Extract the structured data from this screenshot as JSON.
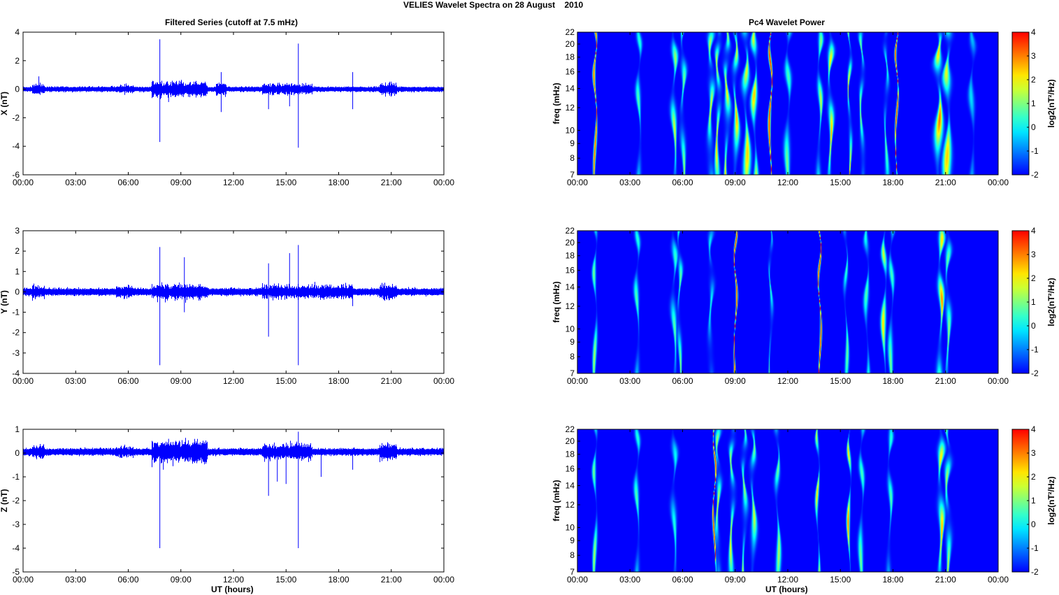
{
  "figure_title": "VELIES Wavelet Spectra on 28 August    2010",
  "left_title": "Filtered Series (cutoff at 7.5 mHz)",
  "right_title": "Pc4 Wavelet Power",
  "xlabel": "UT (hours)",
  "colors": {
    "series": "#0000ff",
    "background_power": "#00008f"
  },
  "chart_data": [
    {
      "type": "line",
      "name": "X",
      "ylabel": "X (nT)",
      "xlim": [
        0,
        24
      ],
      "ylim": [
        -6,
        4
      ],
      "yticks": [
        -6,
        -4,
        -2,
        0,
        2,
        4
      ],
      "xtick_labels": [
        "00:00",
        "03:00",
        "06:00",
        "09:00",
        "12:00",
        "15:00",
        "18:00",
        "21:00",
        "00:00"
      ],
      "offset": 0.0,
      "noise_level": 0.12,
      "active_intervals": [
        [
          0.5,
          1.2,
          0.25
        ],
        [
          5.3,
          6.3,
          0.2
        ],
        [
          7.3,
          10.5,
          0.35
        ],
        [
          11.0,
          11.6,
          0.3
        ],
        [
          13.6,
          16.5,
          0.25
        ],
        [
          20.3,
          21.3,
          0.3
        ]
      ],
      "spikes": [
        [
          7.8,
          3.5
        ],
        [
          7.8,
          -3.7
        ],
        [
          15.7,
          3.2
        ],
        [
          15.7,
          -4.1
        ],
        [
          11.3,
          1.2
        ],
        [
          11.3,
          -1.6
        ],
        [
          14.0,
          -1.4
        ],
        [
          18.8,
          -1.4
        ],
        [
          8.3,
          -0.9
        ],
        [
          15.2,
          -1.2
        ],
        [
          0.9,
          0.9
        ],
        [
          18.8,
          1.2
        ]
      ]
    },
    {
      "type": "line",
      "name": "Y",
      "ylabel": "Y (nT)",
      "xlim": [
        0,
        24
      ],
      "ylim": [
        -4,
        3
      ],
      "yticks": [
        -4,
        -3,
        -2,
        -1,
        0,
        1,
        2,
        3
      ],
      "xtick_labels": [
        "00:00",
        "03:00",
        "06:00",
        "09:00",
        "12:00",
        "15:00",
        "18:00",
        "21:00",
        "00:00"
      ],
      "offset": 0.0,
      "noise_level": 0.12,
      "active_intervals": [
        [
          0.5,
          1.2,
          0.2
        ],
        [
          5.3,
          6.3,
          0.2
        ],
        [
          7.3,
          10.5,
          0.25
        ],
        [
          13.6,
          18.8,
          0.22
        ],
        [
          20.3,
          21.3,
          0.25
        ]
      ],
      "spikes": [
        [
          7.8,
          2.2
        ],
        [
          7.8,
          -3.6
        ],
        [
          9.2,
          1.7
        ],
        [
          9.2,
          -1.0
        ],
        [
          14.0,
          1.4
        ],
        [
          14.0,
          -2.2
        ],
        [
          15.2,
          1.9
        ],
        [
          15.7,
          2.3
        ],
        [
          15.7,
          -3.6
        ],
        [
          18.8,
          -0.7
        ],
        [
          20.9,
          -0.4
        ]
      ]
    },
    {
      "type": "line",
      "name": "Z",
      "ylabel": "Z (nT)",
      "xlim": [
        0,
        24
      ],
      "ylim": [
        -5,
        1
      ],
      "yticks": [
        -5,
        -4,
        -3,
        -2,
        -1,
        0,
        1
      ],
      "xtick_labels": [
        "00:00",
        "03:00",
        "06:00",
        "09:00",
        "12:00",
        "15:00",
        "18:00",
        "21:00",
        "00:00"
      ],
      "offset": 0.05,
      "noise_level": 0.1,
      "active_intervals": [
        [
          0.5,
          1.2,
          0.2
        ],
        [
          5.3,
          6.3,
          0.15
        ],
        [
          7.3,
          10.5,
          0.3
        ],
        [
          13.6,
          16.5,
          0.22
        ],
        [
          20.3,
          21.3,
          0.25
        ]
      ],
      "spikes": [
        [
          7.8,
          -4.0
        ],
        [
          8.0,
          -0.7
        ],
        [
          8.3,
          0.6
        ],
        [
          14.0,
          -1.8
        ],
        [
          14.5,
          -1.2
        ],
        [
          15.0,
          -1.3
        ],
        [
          15.7,
          0.9
        ],
        [
          15.7,
          -4.0
        ],
        [
          17.0,
          -1.0
        ],
        [
          18.8,
          -0.7
        ]
      ]
    },
    {
      "type": "heatmap",
      "name": "X power",
      "ylabel": "freq (mHz)",
      "yscale": "log",
      "ylim": [
        7,
        22
      ],
      "yticks": [
        7,
        8,
        9,
        10,
        12,
        14,
        16,
        18,
        20,
        22
      ],
      "xlim": [
        0,
        24
      ],
      "xtick_labels": [
        "00:00",
        "03:00",
        "06:00",
        "09:00",
        "12:00",
        "15:00",
        "18:00",
        "21:00",
        "00:00"
      ],
      "clim": [
        -2,
        4
      ],
      "colorbar_label": "log2(nT²/Hz)",
      "colorbar_ticks": [
        -2,
        -1,
        0,
        1,
        2,
        3,
        4
      ],
      "bursts": [
        [
          1.0,
          3.5,
          0.04
        ],
        [
          3.5,
          1.0,
          0.08
        ],
        [
          5.5,
          2.0,
          0.1
        ],
        [
          6.0,
          1.5,
          0.1
        ],
        [
          7.6,
          2.5,
          0.12
        ],
        [
          8.0,
          3.0,
          0.1
        ],
        [
          8.5,
          3.0,
          0.12
        ],
        [
          9.0,
          3.0,
          0.1
        ],
        [
          9.6,
          2.5,
          0.12
        ],
        [
          10.1,
          3.0,
          0.1
        ],
        [
          11.0,
          4.0,
          0.04
        ],
        [
          12.0,
          1.0,
          0.1
        ],
        [
          13.8,
          2.0,
          0.08
        ],
        [
          14.4,
          3.0,
          0.1
        ],
        [
          15.5,
          3.0,
          0.06
        ],
        [
          16.2,
          2.0,
          0.08
        ],
        [
          17.6,
          1.0,
          0.08
        ],
        [
          18.2,
          4.0,
          0.03
        ],
        [
          20.6,
          3.5,
          0.14
        ],
        [
          21.1,
          2.5,
          0.14
        ],
        [
          22.5,
          0.0,
          0.1
        ]
      ]
    },
    {
      "type": "heatmap",
      "name": "Y power",
      "ylabel": "freq (mHz)",
      "yscale": "log",
      "ylim": [
        7,
        22
      ],
      "yticks": [
        7,
        8,
        9,
        10,
        12,
        14,
        16,
        18,
        20,
        22
      ],
      "xlim": [
        0,
        24
      ],
      "xtick_labels": [
        "00:00",
        "03:00",
        "06:00",
        "09:00",
        "12:00",
        "15:00",
        "18:00",
        "21:00",
        "00:00"
      ],
      "clim": [
        -2,
        4
      ],
      "colorbar_label": "log2(nT²/Hz)",
      "colorbar_ticks": [
        -2,
        -1,
        0,
        1,
        2,
        3,
        4
      ],
      "bursts": [
        [
          1.0,
          1.5,
          0.06
        ],
        [
          3.4,
          1.0,
          0.08
        ],
        [
          5.5,
          1.0,
          0.1
        ],
        [
          5.8,
          1.5,
          0.08
        ],
        [
          7.6,
          0.5,
          0.1
        ],
        [
          9.0,
          4.0,
          0.03
        ],
        [
          11.0,
          1.0,
          0.06
        ],
        [
          13.8,
          4.0,
          0.03
        ],
        [
          15.3,
          1.0,
          0.06
        ],
        [
          16.5,
          1.0,
          0.08
        ],
        [
          17.5,
          2.5,
          0.08
        ],
        [
          17.9,
          1.0,
          0.08
        ],
        [
          20.7,
          3.5,
          0.1
        ],
        [
          21.1,
          1.5,
          0.1
        ]
      ]
    },
    {
      "type": "heatmap",
      "name": "Z power",
      "ylabel": "freq (mHz)",
      "yscale": "log",
      "ylim": [
        7,
        22
      ],
      "yticks": [
        7,
        8,
        9,
        10,
        12,
        14,
        16,
        18,
        20,
        22
      ],
      "xlim": [
        0,
        24
      ],
      "xtick_labels": [
        "00:00",
        "03:00",
        "06:00",
        "09:00",
        "12:00",
        "15:00",
        "18:00",
        "21:00",
        "00:00"
      ],
      "clim": [
        -2,
        4
      ],
      "colorbar_label": "log2(nT²/Hz)",
      "colorbar_ticks": [
        -2,
        -1,
        0,
        1,
        2,
        3,
        4
      ],
      "bursts": [
        [
          1.0,
          1.5,
          0.06
        ],
        [
          3.4,
          1.0,
          0.08
        ],
        [
          5.5,
          0.5,
          0.1
        ],
        [
          7.8,
          4.0,
          0.03
        ],
        [
          8.0,
          2.5,
          0.1
        ],
        [
          8.8,
          2.5,
          0.1
        ],
        [
          9.5,
          2.0,
          0.1
        ],
        [
          10.0,
          2.0,
          0.1
        ],
        [
          11.4,
          1.5,
          0.08
        ],
        [
          13.7,
          3.0,
          0.05
        ],
        [
          15.5,
          3.5,
          0.05
        ],
        [
          16.2,
          1.0,
          0.08
        ],
        [
          17.8,
          1.0,
          0.08
        ],
        [
          20.7,
          3.0,
          0.12
        ],
        [
          21.1,
          2.0,
          0.12
        ]
      ]
    }
  ]
}
